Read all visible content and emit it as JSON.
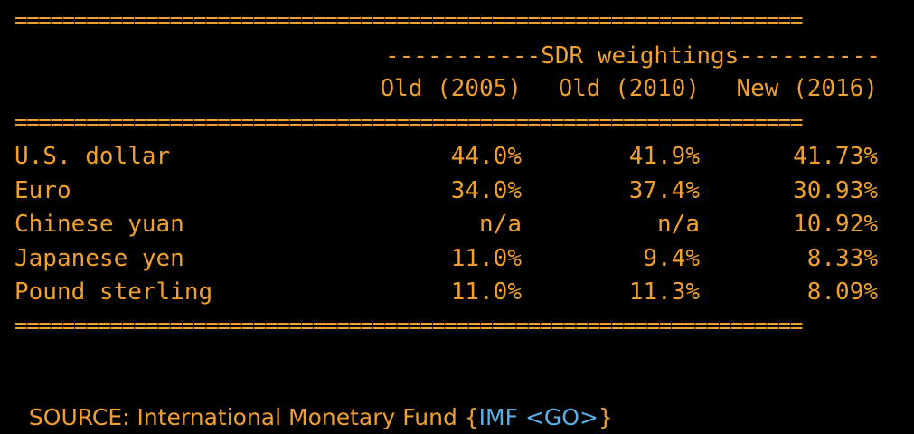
{
  "rules": {
    "top": "==================================================================",
    "mid": "==================================================================",
    "bottom": "=================================================================="
  },
  "table": {
    "group_header": "-----------SDR weightings----------",
    "columns": [
      "Old (2005)",
      "Old (2010)",
      "New (2016)"
    ],
    "rows": [
      {
        "currency": "U.S. dollar",
        "old2005": "44.0%",
        "old2010": "41.9%",
        "new2016": "41.73%"
      },
      {
        "currency": "Euro",
        "old2005": "34.0%",
        "old2010": "37.4%",
        "new2016": "30.93%"
      },
      {
        "currency": "Chinese yuan",
        "old2005": "n/a",
        "old2010": "n/a",
        "new2016": "10.92%"
      },
      {
        "currency": "Japanese yen",
        "old2005": "11.0%",
        "old2010": "9.4%",
        "new2016": "8.33%"
      },
      {
        "currency": "Pound sterling",
        "old2005": "11.0%",
        "old2010": "11.3%",
        "new2016": "8.09%"
      }
    ]
  },
  "source": {
    "prefix": "SOURCE: International Monetary Fund ",
    "open_brace": "{",
    "link_text": "IMF <GO>",
    "close_brace": "}"
  },
  "colors": {
    "background": "#000000",
    "text_amber": "#f0a030",
    "link_blue": "#5ab0e6"
  }
}
